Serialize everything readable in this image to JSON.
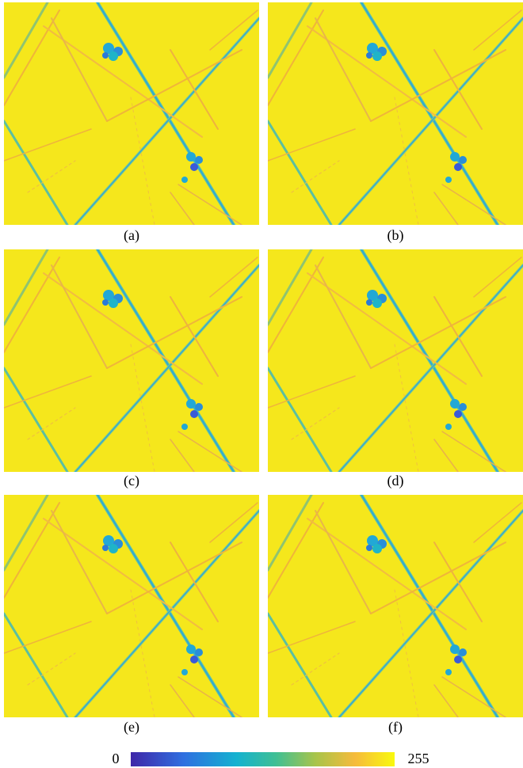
{
  "panels": [
    {
      "label": "(a)"
    },
    {
      "label": "(b)"
    },
    {
      "label": "(c)"
    },
    {
      "label": "(d)"
    },
    {
      "label": "(e)"
    },
    {
      "label": "(f)"
    }
  ],
  "colorbar": {
    "min": 0,
    "max": 255
  }
}
